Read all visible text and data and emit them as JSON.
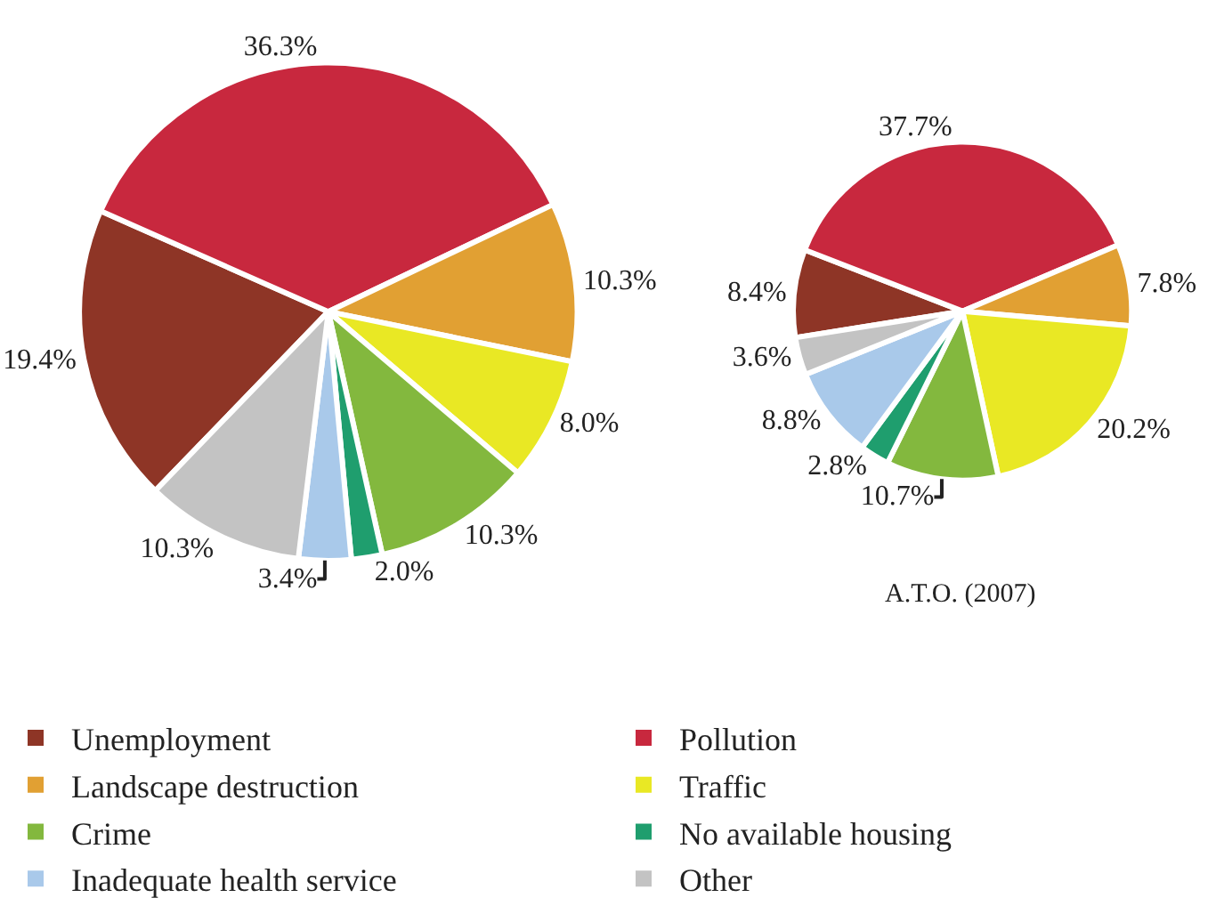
{
  "chart_data": [
    {
      "type": "pie",
      "categories": [
        "Unemployment",
        "Pollution",
        "Landscape destruction",
        "Traffic",
        "Crime",
        "No available housing",
        "Inadequate health service",
        "Other"
      ],
      "values": [
        19.4,
        36.3,
        10.3,
        8.0,
        10.3,
        2.0,
        3.4,
        10.3
      ],
      "value_labels": [
        "19.4%",
        "36.3%",
        "10.3%",
        "8.0%",
        "10.3%",
        "2.0%",
        "3.4%",
        "10.3%"
      ],
      "colors": [
        "#8e3526",
        "#c8283e",
        "#e1a033",
        "#e9e824",
        "#83b83e",
        "#1f9e6e",
        "#a9c9ea",
        "#c3c3c3"
      ],
      "legend": "bottom"
    },
    {
      "type": "pie",
      "title": "A.T.O. (2007)",
      "categories": [
        null,
        null,
        null,
        null,
        null,
        null,
        null,
        null
      ],
      "values": [
        8.4,
        37.7,
        7.8,
        20.2,
        10.7,
        2.8,
        8.8,
        3.6
      ],
      "value_labels": [
        "8.4%",
        "37.7%",
        "7.8%",
        "20.2%",
        "10.7%",
        "2.8%",
        "8.8%",
        "3.6%"
      ],
      "colors": [
        "#8e3526",
        "#c8283e",
        "#e1a033",
        "#e9e824",
        "#83b83e",
        "#1f9e6e",
        "#a9c9ea",
        "#c3c3c3"
      ],
      "legend": false
    }
  ]
}
